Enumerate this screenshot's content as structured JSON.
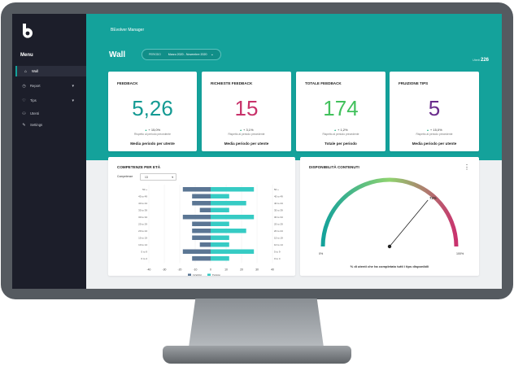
{
  "app": {
    "title": "BEvolver Manager"
  },
  "sidebar": {
    "menu_title": "Menu",
    "items": [
      {
        "label": "Wall",
        "icon": "dashboard-icon",
        "active": true
      },
      {
        "label": "Report",
        "icon": "report-icon",
        "expandable": true
      },
      {
        "label": "Tips",
        "icon": "tips-icon",
        "expandable": true
      },
      {
        "label": "Utenti",
        "icon": "users-icon"
      },
      {
        "label": "Settings",
        "icon": "settings-icon"
      }
    ]
  },
  "header": {
    "page_title": "Wall",
    "period_label": "PERIODO",
    "period_value": "Marzo 2020 - Novembre 2020",
    "users_label": "Utenti",
    "users_count": "226"
  },
  "kpis": [
    {
      "title": "FEEDBACK",
      "value": "5,26",
      "delta": "+ 15,0%",
      "note": "Rispetto al periodo precedente",
      "footer": "Media periodo per utente",
      "color": "#149a93"
    },
    {
      "title": "RICHIESTE FEEDBACK",
      "value": "15",
      "delta": "+ 3,1%",
      "note": "Rispetto al periodo precedente",
      "footer": "Media periodo per utente",
      "color": "#c8326a"
    },
    {
      "title": "TOTALE FEEDBACK",
      "value": "174",
      "delta": "+ 1,2%",
      "note": "Rispetto al periodo precedente",
      "footer": "Totale per periodo",
      "color": "#42c15c"
    },
    {
      "title": "FRUIZIONE TIPS",
      "value": "5",
      "delta": "+ 15,0%",
      "note": "Rispetto al periodo precedente",
      "footer": "Media periodo per utente",
      "color": "#6a2c8c"
    }
  ],
  "competenze": {
    "title": "COMPETENZE PER ETÀ",
    "filter_label": "Competenze",
    "filter_value": "13"
  },
  "disponibilita": {
    "title": "DISPONIBILITÀ CONTENUTI",
    "caption": "% di utenti che ha completato tutti i tips disponibili"
  },
  "chart_data": [
    {
      "type": "bar",
      "orientation": "horizontal-diverging",
      "left_labels": [
        "50 +",
        "45 to 49",
        "40 to 44",
        "35 to 39",
        "30 to 34",
        "25 to 29",
        "20 to 24",
        "15 to 19",
        "10 to 14",
        "5 to 9",
        "0 to 4"
      ],
      "right_labels": [
        "50 +",
        "45 to 49",
        "40 to 44",
        "35 to 39",
        "30 to 34",
        "25 to 29",
        "20 to 24",
        "15 to 19",
        "10 to 14",
        "5 to 9",
        "0 to 4"
      ],
      "series": [
        {
          "name": "Uomini",
          "color": "#5b7694",
          "values": [
            -18,
            -12,
            -12,
            -7,
            -18,
            -12,
            -12,
            -12,
            -7,
            -18,
            -12
          ]
        },
        {
          "name": "Donne",
          "color": "#36cbc4",
          "values": [
            28,
            12,
            23,
            12,
            28,
            12,
            23,
            12,
            12,
            28,
            12
          ]
        }
      ],
      "x_ticks": [
        "-40",
        "-30",
        "-20",
        "-10",
        "0",
        "10",
        "20",
        "30",
        "40"
      ],
      "xlim": [
        -40,
        40
      ],
      "legend": "bottom"
    },
    {
      "type": "gauge",
      "value": 72,
      "value_label": "72%",
      "min_label": "0%",
      "max_label": "100%",
      "range": [
        0,
        100
      ],
      "colors": [
        "#14a29b",
        "#8fd36f",
        "#c9326e"
      ]
    }
  ]
}
